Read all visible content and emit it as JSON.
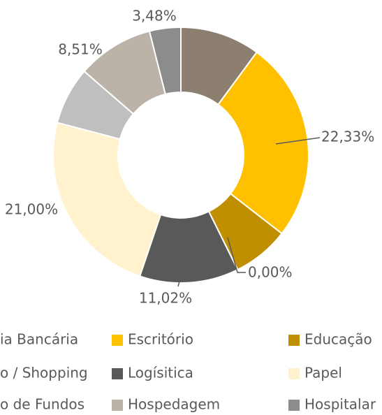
{
  "chart_data": {
    "type": "donut",
    "categories": [
      "ia Bancária",
      "Escritório",
      "Educação",
      "o / Shopping",
      "Logísitica",
      "Papel",
      "o de Fundos",
      "Hospedagem",
      "Hospitalar"
    ],
    "values": [
      8.9,
      22.33,
      6.3,
      0,
      11.02,
      21.0,
      6.4,
      8.51,
      3.48
    ],
    "value_labels": [
      null,
      "22,33%",
      null,
      "0,00%",
      "11,02%",
      "21,00%",
      null,
      "8,51%",
      "3,48%"
    ],
    "colors": [
      "#8c7f70",
      "#ffc000",
      "#bf8f00",
      "#7f6000",
      "#595959",
      "#fff2cc",
      "#bfbfbf",
      "#bcb3a8",
      "#8c8c8c"
    ]
  }
}
